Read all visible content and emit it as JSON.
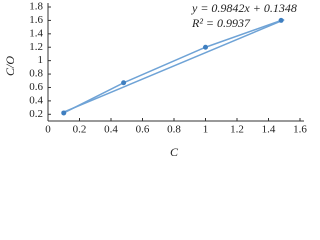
{
  "chart_data": {
    "type": "scatter",
    "x_label": "C",
    "y_label": "C/O",
    "annotations": [
      "y = 0.9842x + 0.1348",
      "R² = 0.9937"
    ],
    "x": [
      0.1,
      0.48,
      1.0,
      1.48
    ],
    "series": [
      {
        "color": "#3f7fc0",
        "values": [
          0.22,
          0.67,
          1.2,
          1.6
        ]
      }
    ],
    "fit": {
      "color": "#6fa3d6",
      "x": [
        0.1,
        1.5
      ],
      "values": [
        0.233,
        1.611
      ]
    },
    "xlim": [
      0,
      1.6
    ],
    "xticks": [
      0,
      0.2,
      0.4,
      0.6,
      0.8,
      1,
      1.2,
      1.4,
      1.6
    ],
    "ylim": [
      0.1,
      1.8
    ],
    "yticks": [
      0.2,
      0.4,
      0.6,
      0.8,
      1,
      1.2,
      1.4,
      1.6,
      1.8
    ]
  }
}
